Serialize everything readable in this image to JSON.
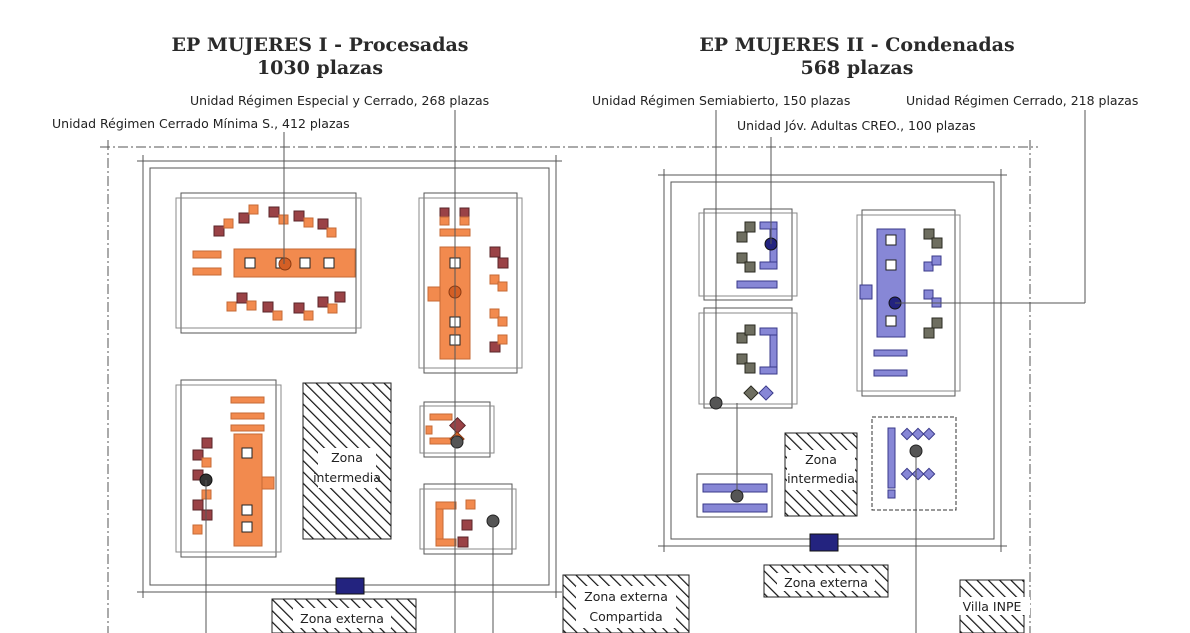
{
  "colors": {
    "orange": "#f28a4e",
    "orange_dark": "#c56a35",
    "red": "#9a4246",
    "grey": "#6e6e60",
    "blue": "#8787d6",
    "blue_dark": "#23237f",
    "line": "#555555"
  },
  "left_block": {
    "title_line1": "EP MUJERES I - Procesadas",
    "title_line2": "1030 plazas",
    "label_especial": "Unidad Régimen Especial y Cerrado, 268 plazas",
    "label_minima": "Unidad Régimen Cerrado Mínima S., 412 plazas"
  },
  "right_block": {
    "title_line1": "EP MUJERES II - Condenadas",
    "title_line2": "568 plazas",
    "label_semiabierto": "Unidad Régimen Semiabierto, 150 plazas",
    "label_cerrado": "Unidad Régimen Cerrado, 218 plazas",
    "label_creo": "Unidad Jóv. Adultas CREO., 100 plazas"
  },
  "zones": {
    "intermedia_left_1": "Zona",
    "intermedia_left_2": "intermedia",
    "intermedia_right_1": "Zona",
    "intermedia_right_2": "intermedia",
    "externa_left": "Zona externa",
    "externa_compartida_1": "Zona externa",
    "externa_compartida_2": "Compartida",
    "externa_right": "Zona externa",
    "villa": "Villa INPE"
  }
}
